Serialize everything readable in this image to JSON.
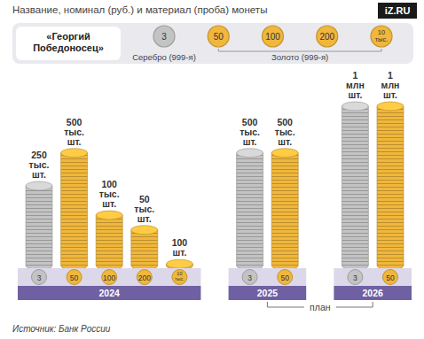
{
  "chart_data": {
    "type": "bar",
    "title": "Название, номинал (руб.) и материал (проба) монеты",
    "logo": "iZ.RU",
    "source": "Источник: Банк России",
    "coin_legend": {
      "title": "«Георгий Победоносец»",
      "coins": [
        "3",
        "50",
        "100",
        "200",
        "10 тыс."
      ],
      "colors": [
        "#c3c3c3",
        "#f0b73c",
        "#f0b73c",
        "#f0b73c",
        "#f0b73c"
      ],
      "materials": [
        {
          "label": "Серебро (999-я)",
          "color": "#c3c3c3"
        },
        {
          "label": "Золото (999-я)",
          "color": "#f0b73c"
        }
      ]
    },
    "categories": [
      "3",
      "50",
      "100",
      "200",
      "10 тыс.",
      "3",
      "50",
      "3",
      "50"
    ],
    "group": [
      "2024",
      "2024",
      "2024",
      "2024",
      "2024",
      "2025",
      "2025",
      "2026",
      "2026"
    ],
    "values": [
      250000,
      500000,
      100000,
      50000,
      100,
      500000,
      500000,
      1000000,
      1000000
    ],
    "value_labels": [
      "250 тыс. шт.",
      "500 тыс. шт.",
      "100 тыс. шт.",
      "50 тыс. шт.",
      "100 шт.",
      "500 тыс. шт.",
      "500 тыс. шт.",
      "1 млн шт.",
      "1 млн шт."
    ],
    "colors": [
      "#c3c3c3",
      "#f0b73c",
      "#f0b73c",
      "#f0b73c",
      "#f0b73c",
      "#c3c3c3",
      "#f0b73c",
      "#c3c3c3",
      "#f0b73c"
    ],
    "data_labels": true,
    "tick_labels": "x",
    "annotations": [
      {
        "text": "план",
        "groups": [
          "2025",
          "2026"
        ]
      }
    ]
  }
}
